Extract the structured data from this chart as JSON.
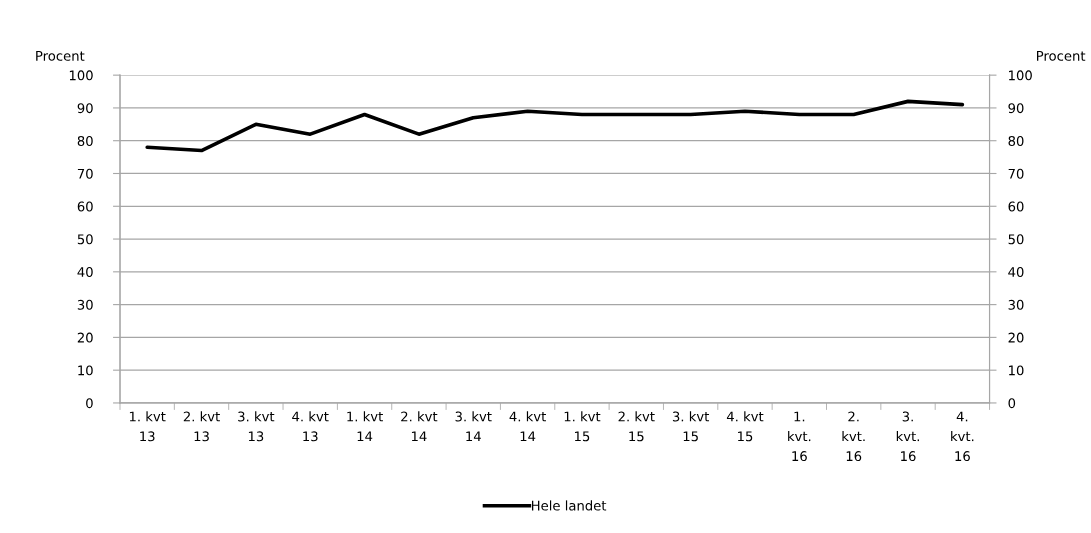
{
  "chart_data": {
    "type": "line",
    "ylabel": "Procent",
    "y2label": "Procent",
    "categories": [
      "1. kvt\n13",
      "2. kvt\n13",
      "3. kvt\n13",
      "4. kvt\n13",
      "1. kvt\n14",
      "2. kvt\n14",
      "3. kvt\n14",
      "4. kvt\n14",
      "1. kvt\n15",
      "2. kvt\n15",
      "3. kvt\n15",
      "4. kvt\n15",
      "1.\nkvt.\n16",
      "2.\nkvt.\n16",
      "3.\nkvt.\n16",
      "4.\nkvt.\n16"
    ],
    "series": [
      {
        "name": "Hele landet",
        "color": "#000000",
        "values": [
          78,
          77,
          85,
          82,
          88,
          82,
          87,
          89,
          88,
          88,
          88,
          89,
          88,
          88,
          92,
          91
        ]
      }
    ],
    "ylim": [
      0,
      100
    ],
    "yticks": [
      0,
      10,
      20,
      30,
      40,
      50,
      60,
      70,
      80,
      90,
      100
    ],
    "y2lim": [
      0,
      100
    ],
    "y2ticks": [
      0,
      10,
      20,
      30,
      40,
      50,
      60,
      70,
      80,
      90,
      100
    ],
    "grid": "y",
    "legend": "bottom",
    "marker": "none",
    "line_style": "solid"
  }
}
